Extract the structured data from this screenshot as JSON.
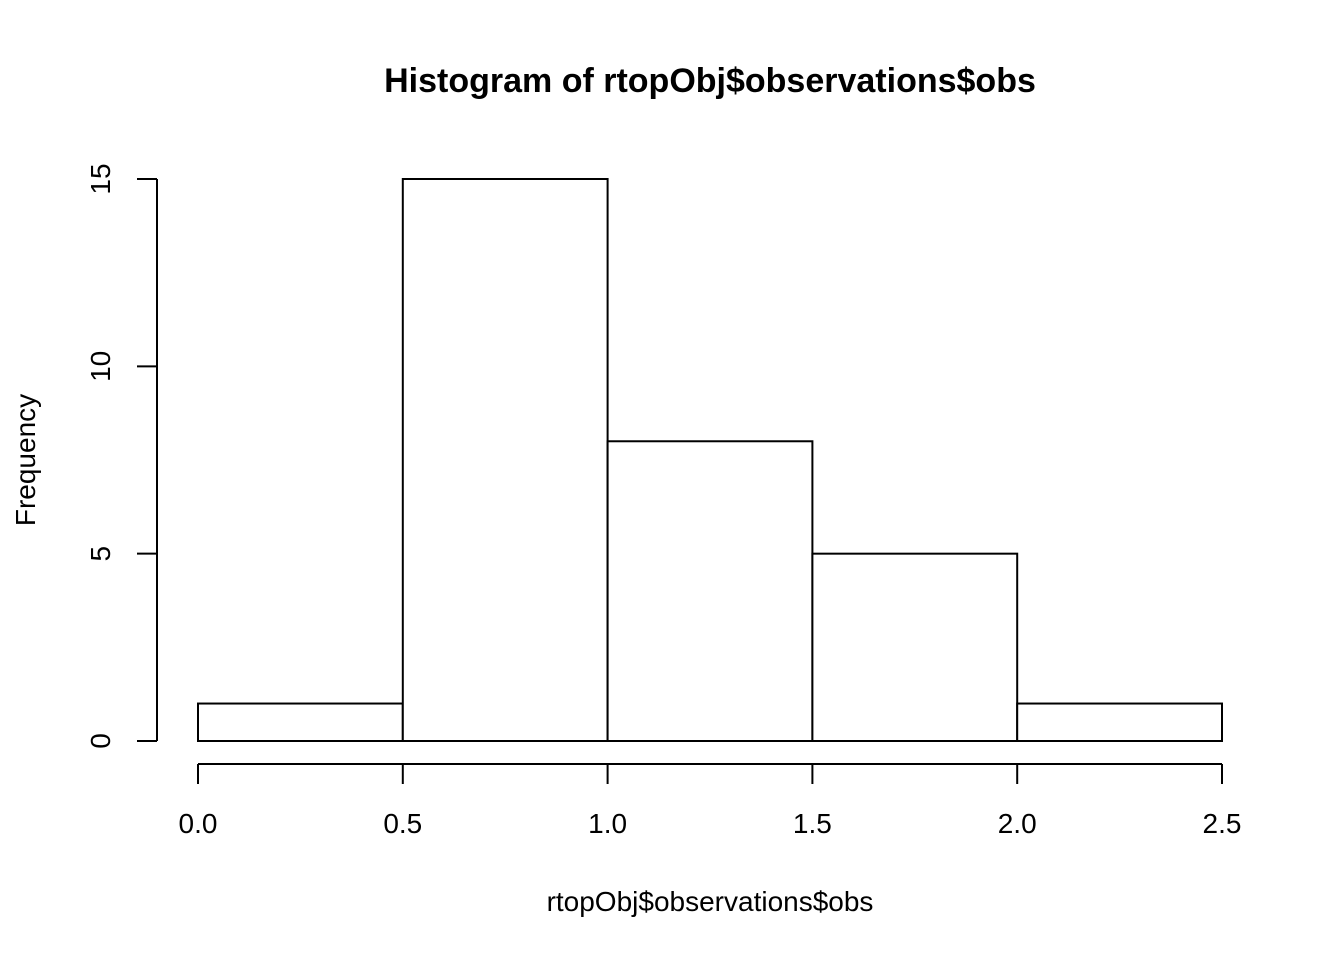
{
  "chart_data": {
    "type": "bar",
    "title": "Histogram of rtopObj$observations$obs",
    "xlabel": "rtopObj$observations$obs",
    "ylabel": "Frequency",
    "bins": [
      {
        "from": 0.0,
        "to": 0.5,
        "count": 1
      },
      {
        "from": 0.5,
        "to": 1.0,
        "count": 15
      },
      {
        "from": 1.0,
        "to": 1.5,
        "count": 8
      },
      {
        "from": 1.5,
        "to": 2.0,
        "count": 5
      },
      {
        "from": 2.0,
        "to": 2.5,
        "count": 1
      }
    ],
    "x_ticks": [
      {
        "value": 0.0,
        "label": "0.0"
      },
      {
        "value": 0.5,
        "label": "0.5"
      },
      {
        "value": 1.0,
        "label": "1.0"
      },
      {
        "value": 1.5,
        "label": "1.5"
      },
      {
        "value": 2.0,
        "label": "2.0"
      },
      {
        "value": 2.5,
        "label": "2.5"
      }
    ],
    "y_ticks": [
      {
        "value": 0,
        "label": "0"
      },
      {
        "value": 5,
        "label": "5"
      },
      {
        "value": 10,
        "label": "10"
      },
      {
        "value": 15,
        "label": "15"
      }
    ],
    "xlim": [
      0,
      2.5
    ],
    "ylim": [
      0,
      15
    ],
    "grid": false,
    "legend": "none",
    "colors": {
      "bar_fill": "#ffffff",
      "bar_stroke": "#000000",
      "axis": "#000000",
      "background": "#ffffff"
    }
  }
}
